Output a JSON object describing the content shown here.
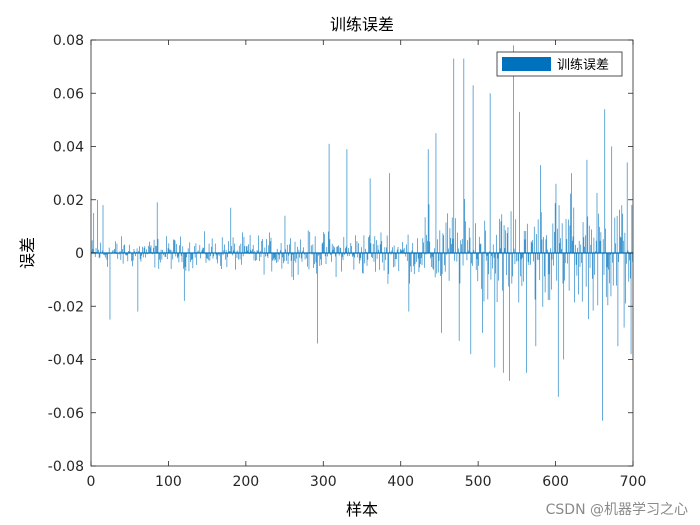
{
  "chart_data": {
    "type": "bar",
    "title": "训练误差",
    "xlabel": "样本",
    "ylabel": "误差",
    "xlim": [
      0,
      700
    ],
    "ylim": [
      -0.08,
      0.08
    ],
    "xticks": [
      "0",
      "100",
      "200",
      "300",
      "400",
      "500",
      "600",
      "700"
    ],
    "yticks": [
      "0.08",
      "0.06",
      "0.04",
      "0.02",
      "0",
      "-0.02",
      "-0.04",
      "-0.06",
      "-0.08"
    ],
    "legend": {
      "label": "训练误差",
      "position": "top-right"
    },
    "bar_color": "#0072bd",
    "series_name": "训练误差",
    "n_samples": 700,
    "peaks": [
      {
        "x": 3,
        "y": 0.015
      },
      {
        "x": 8,
        "y": 0.02
      },
      {
        "x": 15,
        "y": 0.018
      },
      {
        "x": 24,
        "y": -0.025
      },
      {
        "x": 60,
        "y": -0.022
      },
      {
        "x": 85,
        "y": 0.019
      },
      {
        "x": 120,
        "y": -0.018
      },
      {
        "x": 180,
        "y": 0.017
      },
      {
        "x": 250,
        "y": 0.014
      },
      {
        "x": 292,
        "y": -0.034
      },
      {
        "x": 307,
        "y": 0.041
      },
      {
        "x": 330,
        "y": 0.039
      },
      {
        "x": 360,
        "y": 0.028
      },
      {
        "x": 385,
        "y": 0.03
      },
      {
        "x": 410,
        "y": -0.022
      },
      {
        "x": 435,
        "y": 0.039
      },
      {
        "x": 445,
        "y": 0.045
      },
      {
        "x": 452,
        "y": -0.03
      },
      {
        "x": 468,
        "y": 0.073
      },
      {
        "x": 475,
        "y": -0.033
      },
      {
        "x": 481,
        "y": 0.073
      },
      {
        "x": 490,
        "y": -0.038
      },
      {
        "x": 493,
        "y": 0.063
      },
      {
        "x": 505,
        "y": -0.03
      },
      {
        "x": 515,
        "y": 0.06
      },
      {
        "x": 521,
        "y": -0.043
      },
      {
        "x": 532,
        "y": -0.045
      },
      {
        "x": 540,
        "y": -0.048
      },
      {
        "x": 545,
        "y": 0.078
      },
      {
        "x": 553,
        "y": 0.053
      },
      {
        "x": 562,
        "y": -0.045
      },
      {
        "x": 574,
        "y": -0.035
      },
      {
        "x": 580,
        "y": 0.033
      },
      {
        "x": 600,
        "y": 0.026
      },
      {
        "x": 603,
        "y": -0.054
      },
      {
        "x": 610,
        "y": -0.04
      },
      {
        "x": 620,
        "y": 0.03
      },
      {
        "x": 640,
        "y": 0.035
      },
      {
        "x": 660,
        "y": -0.063
      },
      {
        "x": 663,
        "y": 0.054
      },
      {
        "x": 672,
        "y": 0.04
      },
      {
        "x": 680,
        "y": -0.035
      },
      {
        "x": 688,
        "y": -0.028
      },
      {
        "x": 692,
        "y": 0.034
      },
      {
        "x": 697,
        "y": -0.038
      }
    ]
  },
  "watermark": "CSDN @机器学习之心"
}
